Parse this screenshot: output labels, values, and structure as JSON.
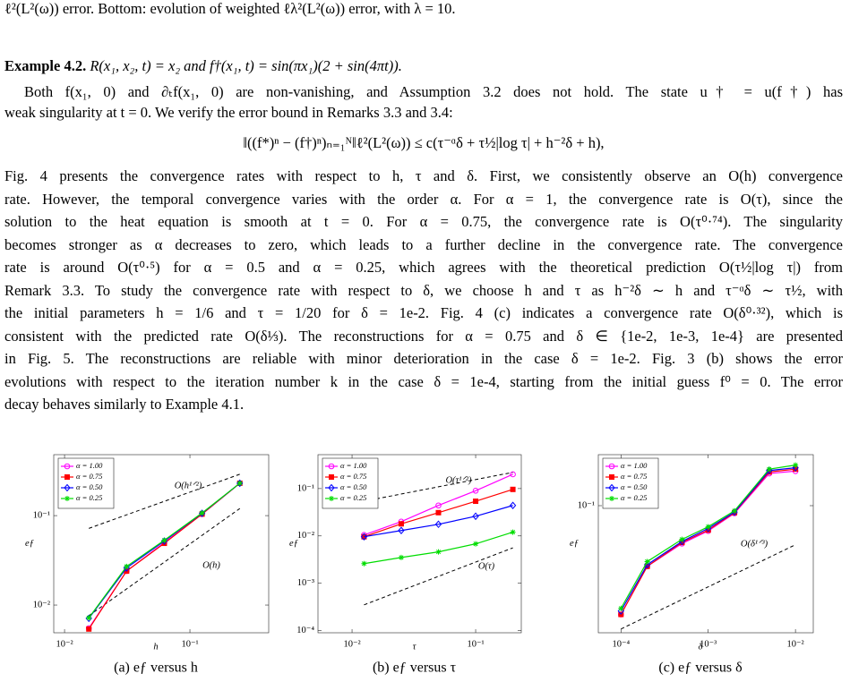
{
  "document": {
    "top_line": "ℓ²(L²(ω)) error. Bottom: evolution of weighted ℓλ²(L²(ω)) error, with λ = 10.",
    "example_label": "Example 4.2.",
    "example_body": "R(x₁, x₂, t) = x₂ and f†(x₁, t) = sin(πx₁)(2 + sin(4πt)).",
    "paragraph_1": [
      "Both f(x₁, 0) and ∂ₜf(x₁, 0) are non-vanishing, and Assumption 3.2 does not hold. The state u† = u(f†) has",
      "weak singularity at t = 0. We verify the error bound in Remarks 3.3 and 3.4:"
    ],
    "equation": "‖((f*)ⁿ − (f†)ⁿ)ₙ₌₁ᴺ‖ℓ²(L²(ω)) ≤ c(τ⁻ᵅδ + τ½|log τ| + h⁻²δ + h),",
    "paragraph_2": [
      "Fig. 4 presents the convergence rates with respect to h, τ and δ. First, we consistently observe an O(h) convergence",
      "rate. However, the temporal convergence varies with the order α. For α = 1, the convergence rate is O(τ), since the",
      "solution to the heat equation is smooth at t = 0. For α = 0.75, the convergence rate is O(τ⁰·⁷⁴). The singularity",
      "becomes stronger as α decreases to zero, which leads to a further decline in the convergence rate. The convergence",
      "rate is around O(τ⁰·⁵) for α = 0.5 and α = 0.25, which agrees with the theoretical prediction O(τ½|log τ|) from",
      "Remark 3.3. To study the convergence rate with respect to δ, we choose h and τ as h⁻²δ ∼ h and τ⁻ᵅδ ∼ τ½, with",
      "the initial parameters h = 1/6 and τ = 1/20 for δ = 1e-2. Fig. 4 (c) indicates a convergence rate O(δ⁰·³²), which is",
      "consistent with the predicted rate O(δ⅓). The reconstructions for α = 0.75 and δ ∈ {1e-2, 1e-3, 1e-4} are presented",
      "in Fig. 5. The reconstructions are reliable with minor deterioration in the case δ = 1e-2. Fig. 3 (b) shows the error",
      "evolutions with respect to the iteration number k in the case δ = 1e-4, starting from the initial guess f⁰ = 0. The error",
      "decay behaves similarly to Example 4.1."
    ]
  },
  "chart_data": [
    {
      "type": "line",
      "caption": "(a) eƒ versus h",
      "xlabel": "h",
      "ylabel": "eƒ",
      "xscale": "log",
      "yscale": "log",
      "x": [
        0.015625,
        0.03125,
        0.0625,
        0.125,
        0.25
      ],
      "xlim": [
        0.0082,
        0.425
      ],
      "ylim": [
        0.0049,
        0.48
      ],
      "xticks": [
        {
          "value": 0.01,
          "label": "10⁻²"
        },
        {
          "value": 0.1,
          "label": "10⁻¹"
        }
      ],
      "yticks": [
        {
          "value": 0.01,
          "label": "10⁻²"
        },
        {
          "value": 0.1,
          "label": "10⁻¹"
        }
      ],
      "legend": "upper left",
      "series": [
        {
          "name": "α = 1.00",
          "color": "#ff00ff",
          "marker": "o",
          "values": [
            0.0055,
            0.024,
            0.05,
            0.104,
            0.23
          ]
        },
        {
          "name": "α = 0.75",
          "color": "#ff0000",
          "marker": "s",
          "values": [
            0.0054,
            0.024,
            0.049,
            0.104,
            0.23
          ]
        },
        {
          "name": "α = 0.50",
          "color": "#0000ff",
          "marker": "d",
          "values": [
            0.0071,
            0.026,
            0.052,
            0.106,
            0.23
          ]
        },
        {
          "name": "α = 0.25",
          "color": "#00dd00",
          "marker": "*",
          "values": [
            0.0072,
            0.027,
            0.053,
            0.107,
            0.23
          ]
        }
      ],
      "reference_lines": [
        {
          "label": "O(h¹ᐟ²)",
          "x": [
            0.015625,
            0.25
          ],
          "y": [
            0.072,
            0.29
          ]
        },
        {
          "label": "O(h)",
          "x": [
            0.015625,
            0.25
          ],
          "y": [
            0.0076,
            0.12
          ]
        }
      ]
    },
    {
      "type": "line",
      "caption": "(b) eƒ versus τ",
      "xlabel": "τ",
      "ylabel": "eƒ",
      "xscale": "log",
      "yscale": "log",
      "x": [
        0.0125,
        0.025,
        0.05,
        0.1,
        0.2
      ],
      "xlim": [
        0.0053,
        0.234
      ],
      "ylim": [
        9e-05,
        0.52
      ],
      "xticks": [
        {
          "value": 0.01,
          "label": "10⁻²"
        },
        {
          "value": 0.1,
          "label": "10⁻¹"
        }
      ],
      "yticks": [
        {
          "value": 0.0001,
          "label": "10⁻⁴"
        },
        {
          "value": 0.001,
          "label": "10⁻³"
        },
        {
          "value": 0.01,
          "label": "10⁻²"
        },
        {
          "value": 0.1,
          "label": "10⁻¹"
        }
      ],
      "legend": "upper left",
      "series": [
        {
          "name": "α = 1.00",
          "color": "#ff00ff",
          "marker": "o",
          "values": [
            0.0105,
            0.02,
            0.044,
            0.09,
            0.2
          ]
        },
        {
          "name": "α = 0.75",
          "color": "#ff0000",
          "marker": "s",
          "values": [
            0.0096,
            0.018,
            0.031,
            0.054,
            0.096
          ]
        },
        {
          "name": "α = 0.50",
          "color": "#0000ff",
          "marker": "d",
          "values": [
            0.0096,
            0.013,
            0.0176,
            0.026,
            0.044
          ]
        },
        {
          "name": "α = 0.25",
          "color": "#00dd00",
          "marker": "*",
          "values": [
            0.0026,
            0.0035,
            0.0046,
            0.0068,
            0.012
          ]
        }
      ],
      "reference_lines": [
        {
          "label": "O(τ¹ᐟ²)",
          "x": [
            0.0125,
            0.2
          ],
          "y": [
            0.054,
            0.22
          ]
        },
        {
          "label": "O(τ)",
          "x": [
            0.0125,
            0.2
          ],
          "y": [
            0.00035,
            0.0056
          ]
        }
      ]
    },
    {
      "type": "line",
      "caption": "(c) eƒ versus δ",
      "xlabel": "δ",
      "ylabel": "eƒ",
      "xscale": "log",
      "yscale": "log",
      "x": [
        0.0001,
        0.0002,
        0.0005,
        0.001,
        0.002,
        0.005,
        0.01
      ],
      "xlim": [
        5.5e-05,
        0.016
      ],
      "ylim": [
        0.0098,
        0.254
      ],
      "xticks": [
        {
          "value": 0.0001,
          "label": "10⁻⁴"
        },
        {
          "value": 0.001,
          "label": "10⁻³"
        },
        {
          "value": 0.01,
          "label": "10⁻²"
        }
      ],
      "yticks": [
        {
          "value": 0.1,
          "label": "10⁻¹"
        }
      ],
      "legend": "upper left",
      "series": [
        {
          "name": "α = 1.00",
          "color": "#ff00ff",
          "marker": "o",
          "values": [
            0.0137,
            0.033,
            0.05,
            0.063,
            0.087,
            0.18,
            0.188
          ]
        },
        {
          "name": "α = 0.75",
          "color": "#ff0000",
          "marker": "s",
          "values": [
            0.0137,
            0.033,
            0.051,
            0.064,
            0.088,
            0.185,
            0.195
          ]
        },
        {
          "name": "α = 0.50",
          "color": "#0000ff",
          "marker": "d",
          "values": [
            0.0146,
            0.034,
            0.052,
            0.066,
            0.089,
            0.19,
            0.2
          ]
        },
        {
          "name": "α = 0.25",
          "color": "#00dd00",
          "marker": "*",
          "values": [
            0.0153,
            0.036,
            0.054,
            0.068,
            0.091,
            0.195,
            0.21
          ]
        }
      ],
      "reference_lines": [
        {
          "label": "O(δ¹ᐟ³)",
          "x": [
            0.0001,
            0.01
          ],
          "y": [
            0.0105,
            0.049
          ]
        }
      ]
    }
  ]
}
